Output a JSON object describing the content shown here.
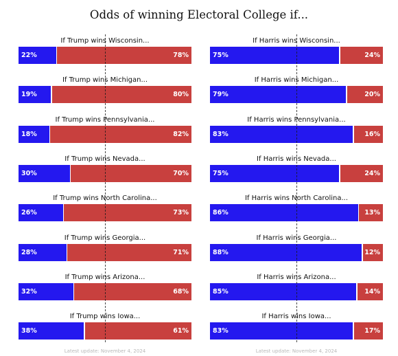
{
  "title": "Odds of winning Electoral College if...",
  "footer": "Latest update: November 4, 2024",
  "colors": {
    "blue": "#2418ef",
    "red": "#c8403e"
  },
  "chart_data": [
    {
      "type": "bar",
      "orientation": "horizontal-stacked",
      "categories": [
        "If Trump wins Wisconsin...",
        "If Trump wins Michigan...",
        "If Trump wins Pennsylvania...",
        "If Trump wins Nevada...",
        "If Trump wins North Carolina...",
        "If Trump wins Georgia...",
        "If Trump wins Arizona...",
        "If Trump wins Iowa..."
      ],
      "series": [
        {
          "color": "#2418ef",
          "values": [
            22,
            19,
            18,
            30,
            26,
            28,
            32,
            38
          ]
        },
        {
          "color": "#c8403e",
          "values": [
            78,
            80,
            82,
            70,
            73,
            71,
            68,
            61
          ]
        }
      ],
      "value_labels": {
        "blue": [
          "22%",
          "19%",
          "18%",
          "30%",
          "26%",
          "28%",
          "32%",
          "38%"
        ],
        "red": [
          "78%",
          "80%",
          "82%",
          "70%",
          "73%",
          "71%",
          "68%",
          "61%"
        ]
      },
      "xlim": [
        0,
        100
      ],
      "reference_line": 50,
      "footer": "Latest update: November 4, 2024"
    },
    {
      "type": "bar",
      "orientation": "horizontal-stacked",
      "categories": [
        "If Harris wins Wisconsin...",
        "If Harris wins Michigan...",
        "If Harris wins Pennsylvania...",
        "If Harris wins Nevada...",
        "If Harris wins North Carolina...",
        "If Harris wins Georgia...",
        "If Harris wins Arizona...",
        "If Harris wins Iowa..."
      ],
      "series": [
        {
          "color": "#2418ef",
          "values": [
            75,
            79,
            83,
            75,
            86,
            88,
            85,
            83
          ]
        },
        {
          "color": "#c8403e",
          "values": [
            24,
            20,
            16,
            24,
            13,
            12,
            14,
            17
          ]
        }
      ],
      "value_labels": {
        "blue": [
          "75%",
          "79%",
          "83%",
          "75%",
          "86%",
          "88%",
          "85%",
          "83%"
        ],
        "red": [
          "24%",
          "20%",
          "16%",
          "24%",
          "13%",
          "12%",
          "14%",
          "17%"
        ]
      },
      "xlim": [
        0,
        100
      ],
      "reference_line": 50,
      "footer": "Latest update: November 4, 2024"
    }
  ]
}
